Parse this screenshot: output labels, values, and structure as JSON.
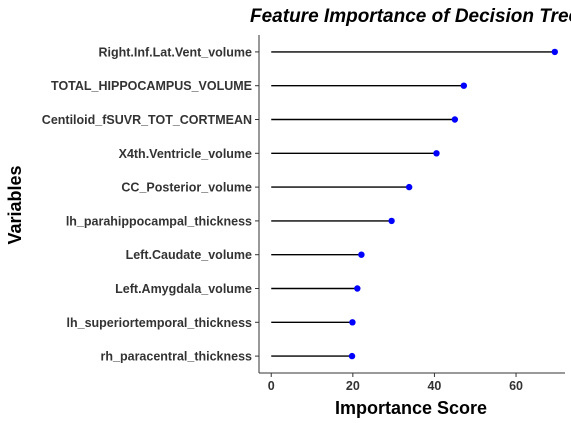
{
  "chart_data": {
    "type": "lollipop",
    "title": "Feature Importance of Decision Tree",
    "xlabel": "Importance Score",
    "ylabel": "Variables",
    "xlim": [
      -3,
      72
    ],
    "xticks": [
      0,
      20,
      40,
      60
    ],
    "grid": false,
    "colors": {
      "point": "#0000ff",
      "segment": "#000000",
      "axis": "#333333"
    },
    "categories": [
      "Right.Inf.Lat.Vent_volume",
      "TOTAL_HIPPOCAMPUS_VOLUME",
      "Centiloid_fSUVR_TOT_CORTMEAN",
      "X4th.Ventricle_volume",
      "CC_Posterior_volume",
      "lh_parahippocampal_thickness",
      "Left.Caudate_volume",
      "Left.Amygdala_volume",
      "lh_superiortemporal_thickness",
      "rh_paracentral_thickness"
    ],
    "values": [
      69.5,
      47.2,
      45.0,
      40.5,
      33.8,
      29.5,
      22.1,
      21.1,
      19.9,
      19.8
    ]
  }
}
